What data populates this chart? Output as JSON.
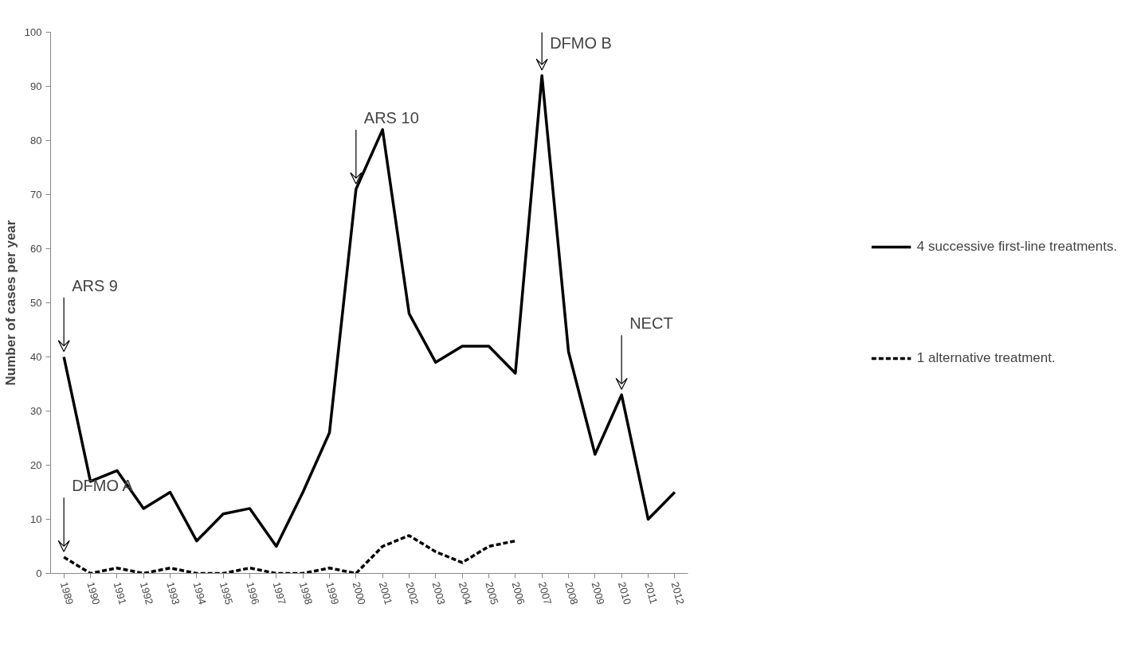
{
  "chart_data": {
    "type": "line",
    "ylabel": "Number of cases per year",
    "categories": [
      "1989",
      "1990",
      "1991",
      "1992",
      "1993",
      "1994",
      "1995",
      "1996",
      "1997",
      "1998",
      "1999",
      "2000",
      "2001",
      "2002",
      "2003",
      "2004",
      "2005",
      "2006",
      "2007",
      "2008",
      "2009",
      "2010",
      "2011",
      "2012"
    ],
    "series": [
      {
        "name": "4 successive first-line treatments.",
        "color": "#000000",
        "line_style": "solid",
        "values": [
          40,
          17,
          19,
          12,
          15,
          6,
          11,
          12,
          5,
          15,
          26,
          71,
          82,
          48,
          39,
          42,
          42,
          37,
          92,
          41,
          22,
          33,
          10,
          15
        ]
      },
      {
        "name": "1 alternative treatment.",
        "color": "#000000",
        "line_style": "dashed",
        "values": [
          3,
          0,
          1,
          0,
          1,
          0,
          0,
          1,
          0,
          0,
          1,
          0,
          5,
          7,
          4,
          2,
          5,
          6,
          null,
          null,
          null,
          null,
          null,
          null
        ]
      }
    ],
    "ylim": [
      0,
      100
    ],
    "yticks": [
      0,
      10,
      20,
      30,
      40,
      50,
      60,
      70,
      80,
      90,
      100
    ],
    "grid": false,
    "legend": "right",
    "marker": "none",
    "annotations": [
      {
        "text": "ARS 9",
        "x": "1989",
        "y": 40
      },
      {
        "text": "DFMO A",
        "x": "1989",
        "y": 3
      },
      {
        "text": "ARS 10",
        "x": "2000",
        "y": 71
      },
      {
        "text": "DFMO B",
        "x": "2007",
        "y": 92
      },
      {
        "text": "NECT",
        "x": "2010",
        "y": 33
      }
    ]
  }
}
